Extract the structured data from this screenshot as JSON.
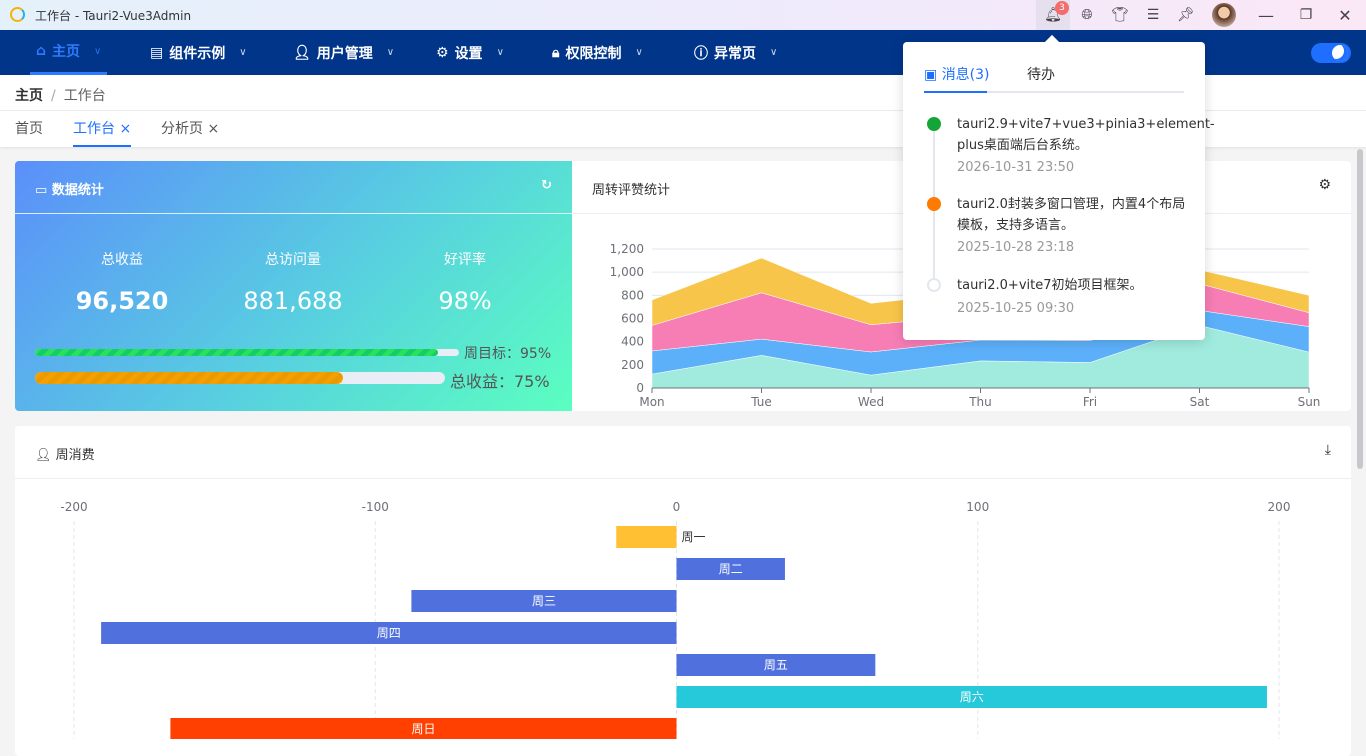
{
  "window": {
    "title": "工作台 - Tauri2-Vue3Admin",
    "notification_count": "3",
    "controls": [
      "minimize",
      "maximize",
      "close"
    ]
  },
  "nav": {
    "items": [
      {
        "label": "主页",
        "icon": "home-icon"
      },
      {
        "label": "组件示例",
        "icon": "layers-icon"
      },
      {
        "label": "用户管理",
        "icon": "user-icon"
      },
      {
        "label": "设置",
        "icon": "gear-icon"
      },
      {
        "label": "权限控制",
        "icon": "lock-icon"
      },
      {
        "label": "异常页",
        "icon": "alert-icon"
      }
    ],
    "active": "主页"
  },
  "breadcrumb": {
    "root": "主页",
    "sep": "/",
    "current": "工作台"
  },
  "tabs": [
    {
      "label": "首页"
    },
    {
      "label": "工作台",
      "closable": "×"
    },
    {
      "label": "分析页",
      "closable": "×"
    }
  ],
  "stats": {
    "title": "数据统计",
    "items": [
      {
        "label": "总收益",
        "value": "96,520"
      },
      {
        "label": "总访问量",
        "value": "881,688"
      },
      {
        "label": "好评率",
        "value": "98%"
      }
    ],
    "progress": [
      {
        "label": "周目标：95%",
        "value": 95,
        "color": "#13ce66"
      },
      {
        "label": "总收益：75%",
        "value": 75,
        "color": "#f5a000"
      }
    ]
  },
  "chart_data": [
    {
      "type": "area",
      "title": "周转评赞统计",
      "stacked": true,
      "categories": [
        "Mon",
        "Tue",
        "Wed",
        "Thu",
        "Fri",
        "Sat",
        "Sun"
      ],
      "ylim": [
        0,
        1200
      ],
      "yticks": [
        "0",
        "200",
        "400",
        "600",
        "800",
        "1,000",
        "1,200"
      ],
      "series": [
        {
          "values": [
            120,
            282,
            111,
            234,
            220,
            540,
            310
          ],
          "color": "#a0eade"
        },
        {
          "values": [
            200,
            140,
            200,
            180,
            190,
            130,
            220
          ],
          "color": "#5cb0fa"
        },
        {
          "values": [
            220,
            400,
            235,
            220,
            210,
            230,
            120
          ],
          "color": "#f77db5"
        },
        {
          "values": [
            220,
            300,
            185,
            200,
            200,
            120,
            150
          ],
          "color": "#f7c54a"
        }
      ]
    },
    {
      "type": "bar",
      "orientation": "horizontal",
      "title": "周消费",
      "categories": [
        "周一",
        "周二",
        "周三",
        "周四",
        "周五",
        "周六",
        "周日"
      ],
      "values": [
        -20,
        36,
        -88,
        -191,
        66,
        196,
        -168
      ],
      "colors": [
        "#ffc033",
        "#5070dd",
        "#5070dd",
        "#5070dd",
        "#5070dd",
        "#26c9d9",
        "#ff4000"
      ],
      "xlim": [
        -200,
        200
      ],
      "xticks": [
        "-200",
        "-100",
        "0",
        "100",
        "200"
      ],
      "grid": true
    }
  ],
  "notifications": {
    "tabs": [
      {
        "label": "消息(3)"
      },
      {
        "label": "待办"
      }
    ],
    "items": [
      {
        "text": "tauri2.9+vite7+vue3+pinia3+element-plus桌面端后台系统。",
        "time": "2026-10-31 23:50",
        "status": "success",
        "color": "#13a538"
      },
      {
        "text": "tauri2.0封装多窗口管理，内置4个布局模板，支持多语言。",
        "time": "2025-10-28 23:18",
        "status": "pending",
        "color": "#ff7a00"
      },
      {
        "text": "tauri2.0+vite7初始项目框架。",
        "time": "2025-10-25 09:30",
        "status": "default",
        "color": "#e4e7ed"
      }
    ]
  }
}
